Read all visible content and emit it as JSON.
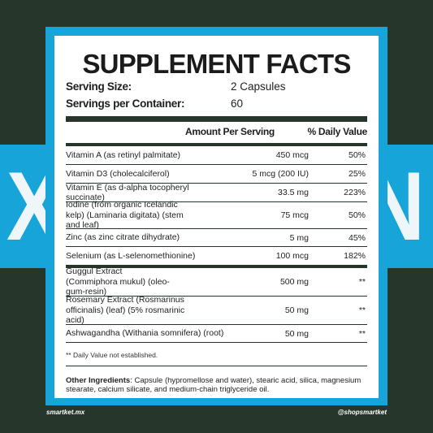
{
  "background": {
    "band_text_left": "X",
    "band_text_right": "N",
    "colors": {
      "dark": "#27362a",
      "accent": "#17a4d8",
      "panel": "#ffffff"
    }
  },
  "label": {
    "title": "SUPPLEMENT FACTS",
    "serving_size_label": "Serving Size:",
    "serving_size_value": "2 Capsules",
    "servings_label": "Servings per Container:",
    "servings_value": "60",
    "col_amount": "Amount Per Serving",
    "col_dv": "% Daily Value",
    "group1": [
      {
        "name": "Vitamin A (as retinyl palmitate)",
        "amount": "450 mcg",
        "dv": "50%"
      },
      {
        "name": "Vitamin D3 (cholecalciferol)",
        "amount": "5 mcg (200 IU)",
        "dv": "25%"
      },
      {
        "name": "Vitamin E (as d-alpha tocopheryl succinate)",
        "amount": "33.5 mg",
        "dv": "223%"
      },
      {
        "name": "Iodine (from organic Icelandic kelp) (Laminaria digitata) (stem and leaf)",
        "amount": "75 mcg",
        "dv": "50%"
      },
      {
        "name": "Zinc (as zinc citrate dihydrate)",
        "amount": "5 mg",
        "dv": "45%"
      },
      {
        "name": "Selenium (as L-selenomethionine)",
        "amount": "100 mcg",
        "dv": "182%"
      }
    ],
    "group2": [
      {
        "name": "Guggul Extract (Commiphora mukul) (oleo-gum-resin)",
        "amount": "500 mg",
        "dv": "**"
      },
      {
        "name": "Rosemary Extract (Rosmarinus officinalis) (leaf) (5% rosmarinic acid)",
        "amount": "50 mg",
        "dv": "**"
      },
      {
        "name": "Ashwagandha (Withania somnifera) (root)",
        "amount": "50 mg",
        "dv": "**"
      }
    ],
    "footnote": "** Daily Value not established.",
    "other_label": "Other Ingredients",
    "other_text": ": Capsule (hypromellose and water), stearic acid, silica, magnesium stearate, calcium silicate, and medium-chain triglyceride oil."
  },
  "footer": {
    "left_handle": "smartket.mx",
    "right_handle": "@shopsmartket"
  }
}
